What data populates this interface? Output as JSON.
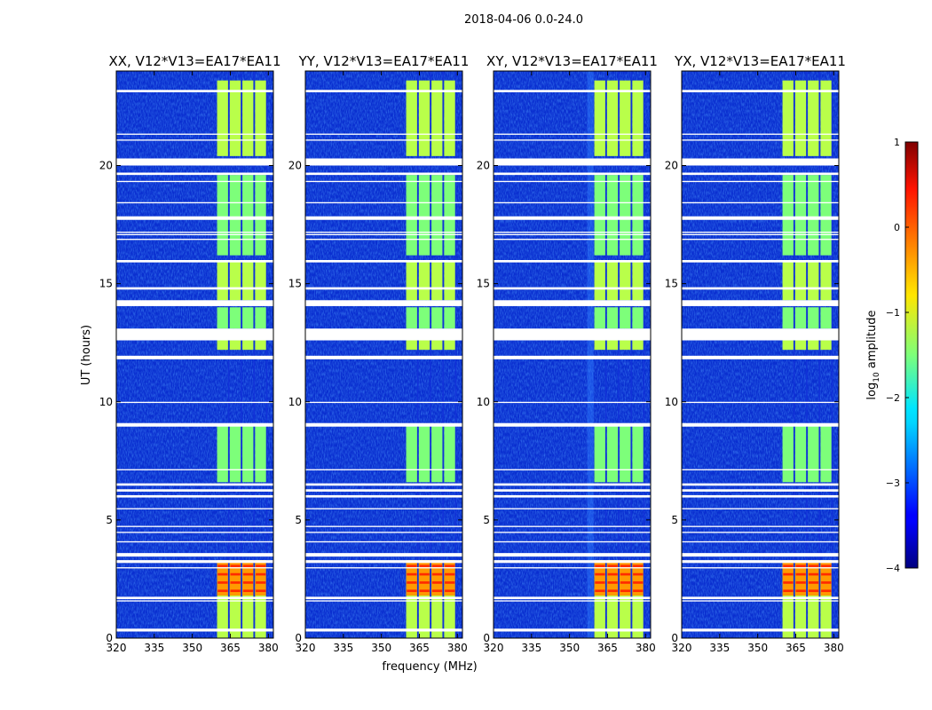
{
  "chart_data": {
    "type": "heatmap",
    "suptitle": "2018-04-06 0.0-24.0",
    "xlabel": "frequency (MHz)",
    "ylabel": "UT (hours)",
    "xlim": [
      320,
      382
    ],
    "ylim": [
      0,
      24
    ],
    "xticks": [
      320,
      335,
      350,
      365,
      380
    ],
    "yticks": [
      0,
      5,
      10,
      15,
      20
    ],
    "panels": [
      {
        "title": "XX, V12*V13=EA17*EA11",
        "rfi_onset_mhz": 362
      },
      {
        "title": "YY, V12*V13=EA17*EA11",
        "rfi_onset_mhz": 360
      },
      {
        "title": "XY, V12*V13=EA17*EA11",
        "rfi_onset_mhz": 357
      },
      {
        "title": "YX, V12*V13=EA17*EA11",
        "rfi_onset_mhz": 360
      }
    ],
    "rfi_band_mhz": [
      359.5,
      379.5
    ],
    "rfi_subband_edges_mhz": [
      359.5,
      364.5,
      369.5,
      374.5,
      379.5
    ],
    "rfi_active_hours": [
      [
        0.0,
        3.3
      ],
      [
        6.6,
        9.0
      ],
      [
        12.2,
        12.6
      ],
      [
        13.1,
        14.0
      ],
      [
        14.3,
        16.0
      ],
      [
        16.2,
        19.6
      ],
      [
        20.4,
        23.6
      ]
    ],
    "rfi_strong_hours": [
      [
        1.8,
        3.3
      ]
    ],
    "colorbar": {
      "label": "log10 amplitude",
      "label_base": "log",
      "label_sub": "10",
      "label_rest": " amplitude",
      "min": -4,
      "max": 1,
      "ticks": [
        1,
        0,
        -1,
        -2,
        -3,
        -4
      ],
      "tick_labels": [
        "1",
        "0",
        "−1",
        "−2",
        "−3",
        "−4"
      ],
      "colormap": "jet"
    },
    "flagged_hours": [
      [
        0.28,
        0.4
      ],
      [
        1.55,
        1.6
      ],
      [
        1.65,
        1.75
      ],
      [
        2.95,
        3.0
      ],
      [
        3.18,
        3.3
      ],
      [
        3.45,
        3.6
      ],
      [
        4.05,
        4.1
      ],
      [
        4.45,
        4.5
      ],
      [
        4.7,
        4.75
      ],
      [
        5.45,
        5.5
      ],
      [
        5.95,
        6.05
      ],
      [
        6.2,
        6.3
      ],
      [
        6.45,
        6.55
      ],
      [
        7.1,
        7.15
      ],
      [
        8.95,
        9.1
      ],
      [
        9.95,
        10.0
      ],
      [
        11.8,
        11.95
      ],
      [
        12.6,
        13.1
      ],
      [
        14.05,
        14.3
      ],
      [
        14.75,
        14.85
      ],
      [
        15.9,
        16.0
      ],
      [
        16.85,
        16.9
      ],
      [
        17.05,
        17.1
      ],
      [
        17.15,
        17.2
      ],
      [
        17.7,
        17.85
      ],
      [
        18.4,
        18.45
      ],
      [
        19.3,
        19.35
      ],
      [
        19.6,
        19.7
      ],
      [
        20.0,
        20.3
      ],
      [
        21.05,
        21.1
      ],
      [
        21.3,
        21.35
      ],
      [
        23.1,
        23.2
      ]
    ]
  }
}
